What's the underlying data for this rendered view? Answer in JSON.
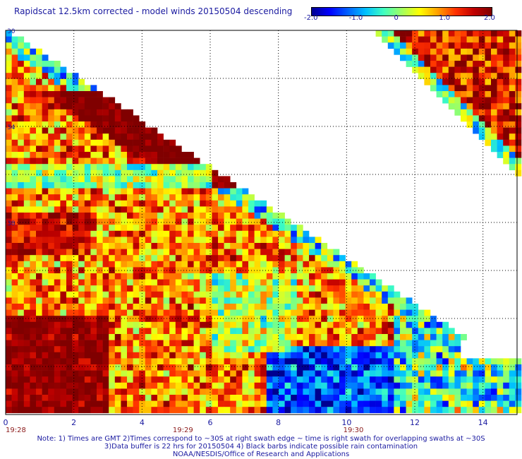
{
  "title": "Rapidscat 12.5km corrected - model winds 20150504 descending",
  "colorbar": {
    "colors": [
      "#000090",
      "#0000ff",
      "#0060ff",
      "#00c0ff",
      "#40ffc0",
      "#a0ff60",
      "#ffff00",
      "#ffa000",
      "#ff3000",
      "#c00000",
      "#800000"
    ],
    "ticks": [
      {
        "value": -2.0,
        "label": "-2.0"
      },
      {
        "value": -1.0,
        "label": "-1.0"
      },
      {
        "value": 0,
        "label": "0"
      },
      {
        "value": 1.0,
        "label": "1.0"
      },
      {
        "value": 2.0,
        "label": "2.0"
      }
    ],
    "range": [
      -2.0,
      2.0
    ]
  },
  "map": {
    "xlim": [
      0,
      15
    ],
    "ylim": [
      -46,
      -30
    ],
    "x_ticks": [
      {
        "value": 0,
        "label": "0"
      },
      {
        "value": 2,
        "label": "2"
      },
      {
        "value": 4,
        "label": "4"
      },
      {
        "value": 6,
        "label": "6"
      },
      {
        "value": 8,
        "label": "8"
      },
      {
        "value": 10,
        "label": "10"
      },
      {
        "value": 12,
        "label": "12"
      },
      {
        "value": 14,
        "label": "14"
      }
    ],
    "y_ticks": [
      {
        "value": -30,
        "label": "30"
      },
      {
        "value": -34,
        "label": "34"
      },
      {
        "value": -38,
        "label": "38"
      }
    ],
    "time_labels": [
      {
        "x": 0,
        "label": "19:28"
      },
      {
        "x": 5.2,
        "label": "19:29"
      },
      {
        "x": 10.2,
        "label": "19:30"
      }
    ],
    "gridlines": true
  },
  "notes": {
    "line1": "Note: 1) Times are GMT 2)Times correspond to ~30S at right swath edge ~ time is right swath for overlapping swaths at ~30S",
    "line2": "3)Data buffer is 22 hrs for 20150504 4) Black barbs indicate possible rain contamination",
    "line3": "NOAA/NESDIS/Office of Research and Applications"
  },
  "colors": {
    "text": "#1a1aa0",
    "time_text": "#8b1a1a",
    "grid": "#000000"
  }
}
